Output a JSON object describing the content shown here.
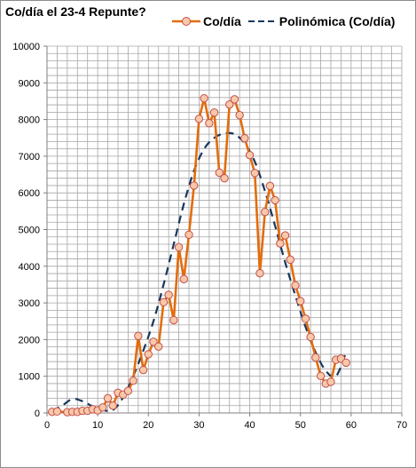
{
  "chart_data": {
    "type": "line",
    "title": "Co/día el 23-4 Repunte?",
    "xlim": [
      0,
      70
    ],
    "ylim": [
      0,
      10000
    ],
    "x_ticks": [
      0,
      10,
      20,
      30,
      40,
      50,
      60,
      70
    ],
    "y_ticks": [
      0,
      1000,
      2000,
      3000,
      4000,
      5000,
      6000,
      7000,
      8000,
      9000,
      10000
    ],
    "grid": true,
    "legend_position": "top",
    "series": [
      {
        "name": "Co/día",
        "kind": "line-with-markers",
        "color": "#e46c0a",
        "marker_fill": "#f9c8a8",
        "marker_edge": "#c0504d",
        "x": [
          1,
          2,
          4,
          5,
          6,
          7,
          8,
          9,
          10,
          11,
          12,
          13,
          14,
          15,
          16,
          17,
          18,
          19,
          20,
          21,
          22,
          23,
          24,
          25,
          26,
          27,
          28,
          29,
          30,
          31,
          32,
          33,
          34,
          35,
          36,
          37,
          38,
          39,
          40,
          41,
          42,
          43,
          44,
          45,
          46,
          47,
          48,
          49,
          50,
          51,
          52,
          53,
          54,
          55,
          56,
          57,
          58,
          59
        ],
        "y": [
          30,
          40,
          20,
          30,
          30,
          60,
          60,
          100,
          70,
          150,
          400,
          200,
          550,
          500,
          600,
          880,
          2100,
          1170,
          1600,
          1940,
          1810,
          3020,
          3220,
          2530,
          4520,
          3650,
          4860,
          6200,
          8020,
          8580,
          7900,
          8190,
          6550,
          6400,
          8410,
          8550,
          8120,
          7490,
          7030,
          6540,
          3810,
          5480,
          6190,
          5800,
          4620,
          4840,
          4180,
          3480,
          3050,
          2570,
          2070,
          1510,
          1010,
          800,
          850,
          1450,
          1480,
          1370
        ]
      },
      {
        "name": "Polinómica (Co/día)",
        "kind": "dashed-trendline",
        "color": "#17375e",
        "x": [
          1,
          3,
          5,
          7,
          9,
          11,
          13,
          15,
          17,
          19,
          21,
          23,
          25,
          27,
          29,
          31,
          33,
          35,
          37,
          39,
          41,
          43,
          45,
          47,
          49,
          51,
          53,
          55,
          57,
          59
        ],
        "y": [
          50,
          200,
          380,
          320,
          180,
          80,
          80,
          420,
          1000,
          1700,
          2500,
          3500,
          4600,
          5700,
          6600,
          7200,
          7500,
          7620,
          7600,
          7350,
          6850,
          6050,
          5100,
          4100,
          3200,
          2350,
          1650,
          1150,
          1000,
          1650
        ]
      }
    ]
  },
  "colors": {
    "grid": "#a6a6a6",
    "axis": "#808080",
    "frame": "#8c8c8c"
  }
}
